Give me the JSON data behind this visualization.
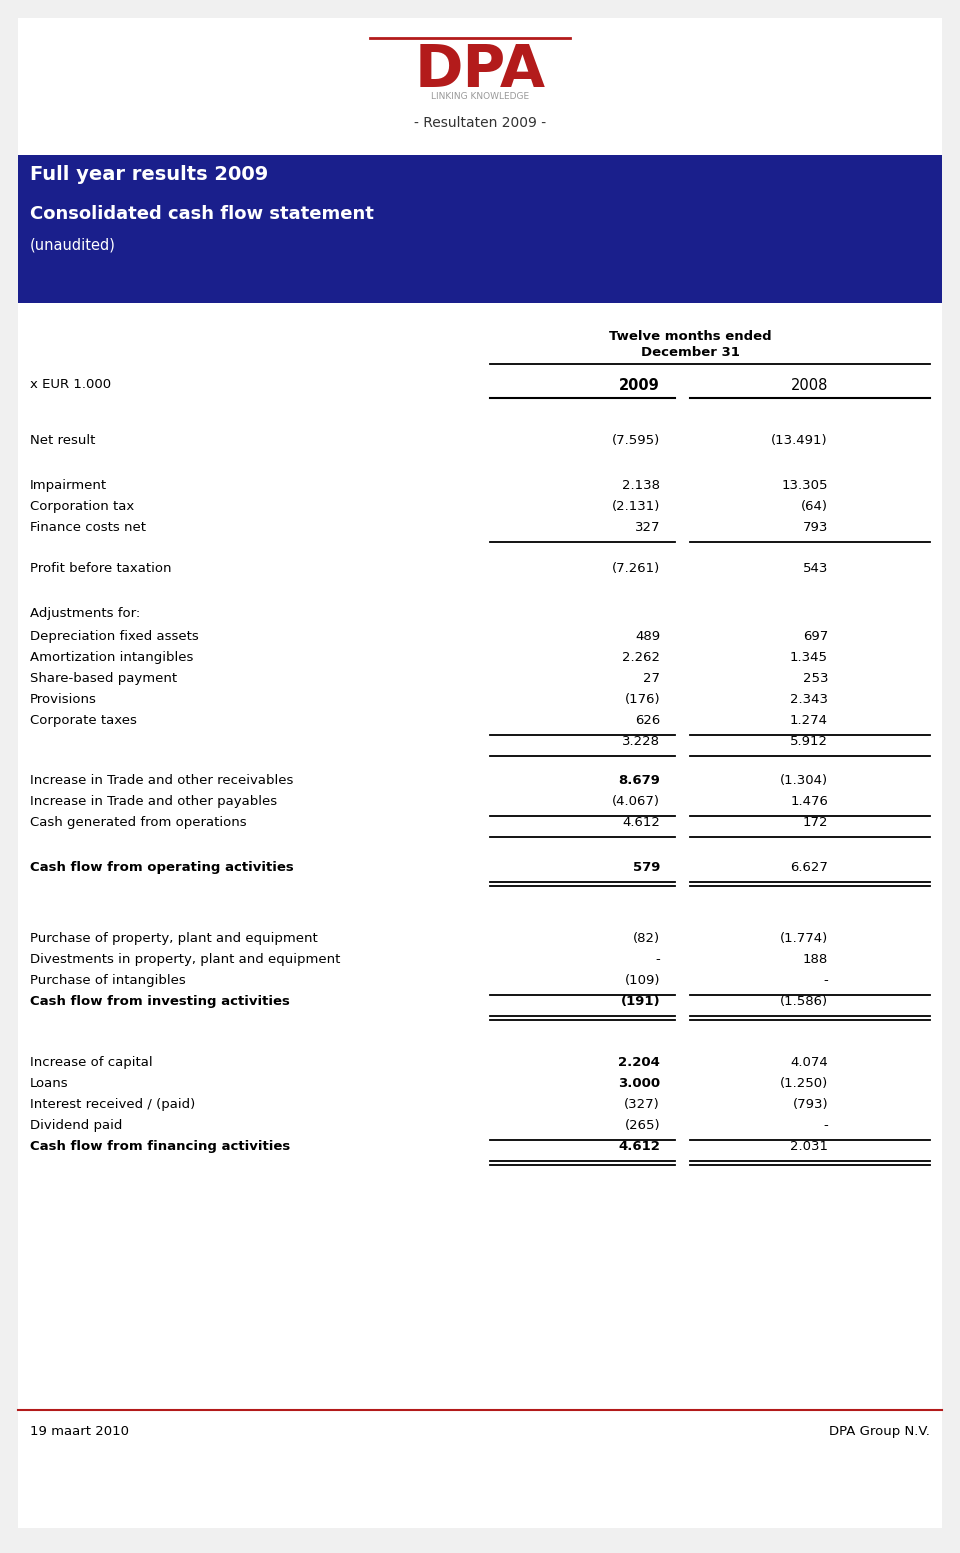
{
  "page_title": "- Resultaten 2009 -",
  "header_title": "Full year results 2009",
  "header_subtitle": "Consolidated cash flow statement",
  "header_sub2": "(unaudited)",
  "col1_label": "2009",
  "col2_label": "2008",
  "eur_label": "x EUR 1.000",
  "rows": [
    {
      "label": "Net result",
      "v2009": "(7.595)",
      "v2008": "(13.491)",
      "bold": false,
      "line_below": false,
      "space_above": 28,
      "v2009_bold": false
    },
    {
      "label": "Impairment",
      "v2009": "2.138",
      "v2008": "13.305",
      "bold": false,
      "line_below": false,
      "space_above": 24,
      "v2009_bold": false
    },
    {
      "label": "Corporation tax",
      "v2009": "(2.131)",
      "v2008": "(64)",
      "bold": false,
      "line_below": false,
      "space_above": 0,
      "v2009_bold": false
    },
    {
      "label": "Finance costs net",
      "v2009": "327",
      "v2008": "793",
      "bold": false,
      "line_below": true,
      "space_above": 0,
      "v2009_bold": false
    },
    {
      "label": "Profit before taxation",
      "v2009": "(7.261)",
      "v2008": "543",
      "bold": false,
      "line_below": false,
      "space_above": 20,
      "v2009_bold": false
    },
    {
      "label": "Adjustments for:",
      "v2009": "",
      "v2008": "",
      "bold": false,
      "line_below": false,
      "space_above": 24,
      "v2009_bold": false
    },
    {
      "label": "Depreciation fixed assets",
      "v2009": "489",
      "v2008": "697",
      "bold": false,
      "line_below": false,
      "space_above": 2,
      "v2009_bold": false
    },
    {
      "label": "Amortization intangibles",
      "v2009": "2.262",
      "v2008": "1.345",
      "bold": false,
      "line_below": false,
      "space_above": 0,
      "v2009_bold": false
    },
    {
      "label": "Share-based payment",
      "v2009": "27",
      "v2008": "253",
      "bold": false,
      "line_below": false,
      "space_above": 0,
      "v2009_bold": false
    },
    {
      "label": "Provisions",
      "v2009": "(176)",
      "v2008": "2.343",
      "bold": false,
      "line_below": false,
      "space_above": 0,
      "v2009_bold": false
    },
    {
      "label": "Corporate taxes",
      "v2009": "626",
      "v2008": "1.274",
      "bold": false,
      "line_below": true,
      "space_above": 0,
      "v2009_bold": false
    },
    {
      "label": "",
      "v2009": "3.228",
      "v2008": "5.912",
      "bold": false,
      "line_below": true,
      "space_above": 0,
      "v2009_bold": false
    },
    {
      "label": "Increase in Trade and other receivables",
      "v2009": "8.679",
      "v2008": "(1.304)",
      "bold": false,
      "line_below": false,
      "space_above": 18,
      "v2009_bold": true
    },
    {
      "label": "Increase in Trade and other payables",
      "v2009": "(4.067)",
      "v2008": "1.476",
      "bold": false,
      "line_below": true,
      "space_above": 0,
      "v2009_bold": false
    },
    {
      "label": "Cash generated from operations",
      "v2009": "4.612",
      "v2008": "172",
      "bold": false,
      "line_below": true,
      "space_above": 0,
      "v2009_bold": false
    },
    {
      "label": "Cash flow from operating activities",
      "v2009": "579",
      "v2008": "6.627",
      "bold": true,
      "line_below": true,
      "space_above": 24,
      "v2009_bold": true,
      "double_line": true
    },
    {
      "label": "Purchase of property, plant and equipment",
      "v2009": "(82)",
      "v2008": "(1.774)",
      "bold": false,
      "line_below": false,
      "space_above": 50,
      "v2009_bold": false
    },
    {
      "label": "Divestments in property, plant and equipment",
      "v2009": "-",
      "v2008": "188",
      "bold": false,
      "line_below": false,
      "space_above": 0,
      "v2009_bold": false
    },
    {
      "label": "Purchase of intangibles",
      "v2009": "(109)",
      "v2008": "-",
      "bold": false,
      "line_below": true,
      "space_above": 0,
      "v2009_bold": false
    },
    {
      "label": "Cash flow from investing activities",
      "v2009": "(191)",
      "v2008": "(1.586)",
      "bold": true,
      "line_below": true,
      "space_above": 0,
      "v2009_bold": true,
      "double_line": true
    },
    {
      "label": "Increase of capital",
      "v2009": "2.204",
      "v2008": "4.074",
      "bold": false,
      "line_below": false,
      "space_above": 40,
      "v2009_bold": true
    },
    {
      "label": "Loans",
      "v2009": "3.000",
      "v2008": "(1.250)",
      "bold": false,
      "line_below": false,
      "space_above": 0,
      "v2009_bold": true
    },
    {
      "label": "Interest received / (paid)",
      "v2009": "(327)",
      "v2008": "(793)",
      "bold": false,
      "line_below": false,
      "space_above": 0,
      "v2009_bold": false
    },
    {
      "label": "Dividend paid",
      "v2009": "(265)",
      "v2008": "-",
      "bold": false,
      "line_below": true,
      "space_above": 0,
      "v2009_bold": false
    },
    {
      "label": "Cash flow from financing activities",
      "v2009": "4.612",
      "v2008": "2.031",
      "bold": true,
      "line_below": true,
      "space_above": 0,
      "v2009_bold": true,
      "double_line": true
    }
  ],
  "footer_left": "19 maart 2010",
  "footer_right": "DPA Group N.V.",
  "header_bg": "#1a1f8c",
  "dpa_red": "#b31b1b",
  "linking_color": "#999999",
  "page_bg": "#f0f0f0"
}
